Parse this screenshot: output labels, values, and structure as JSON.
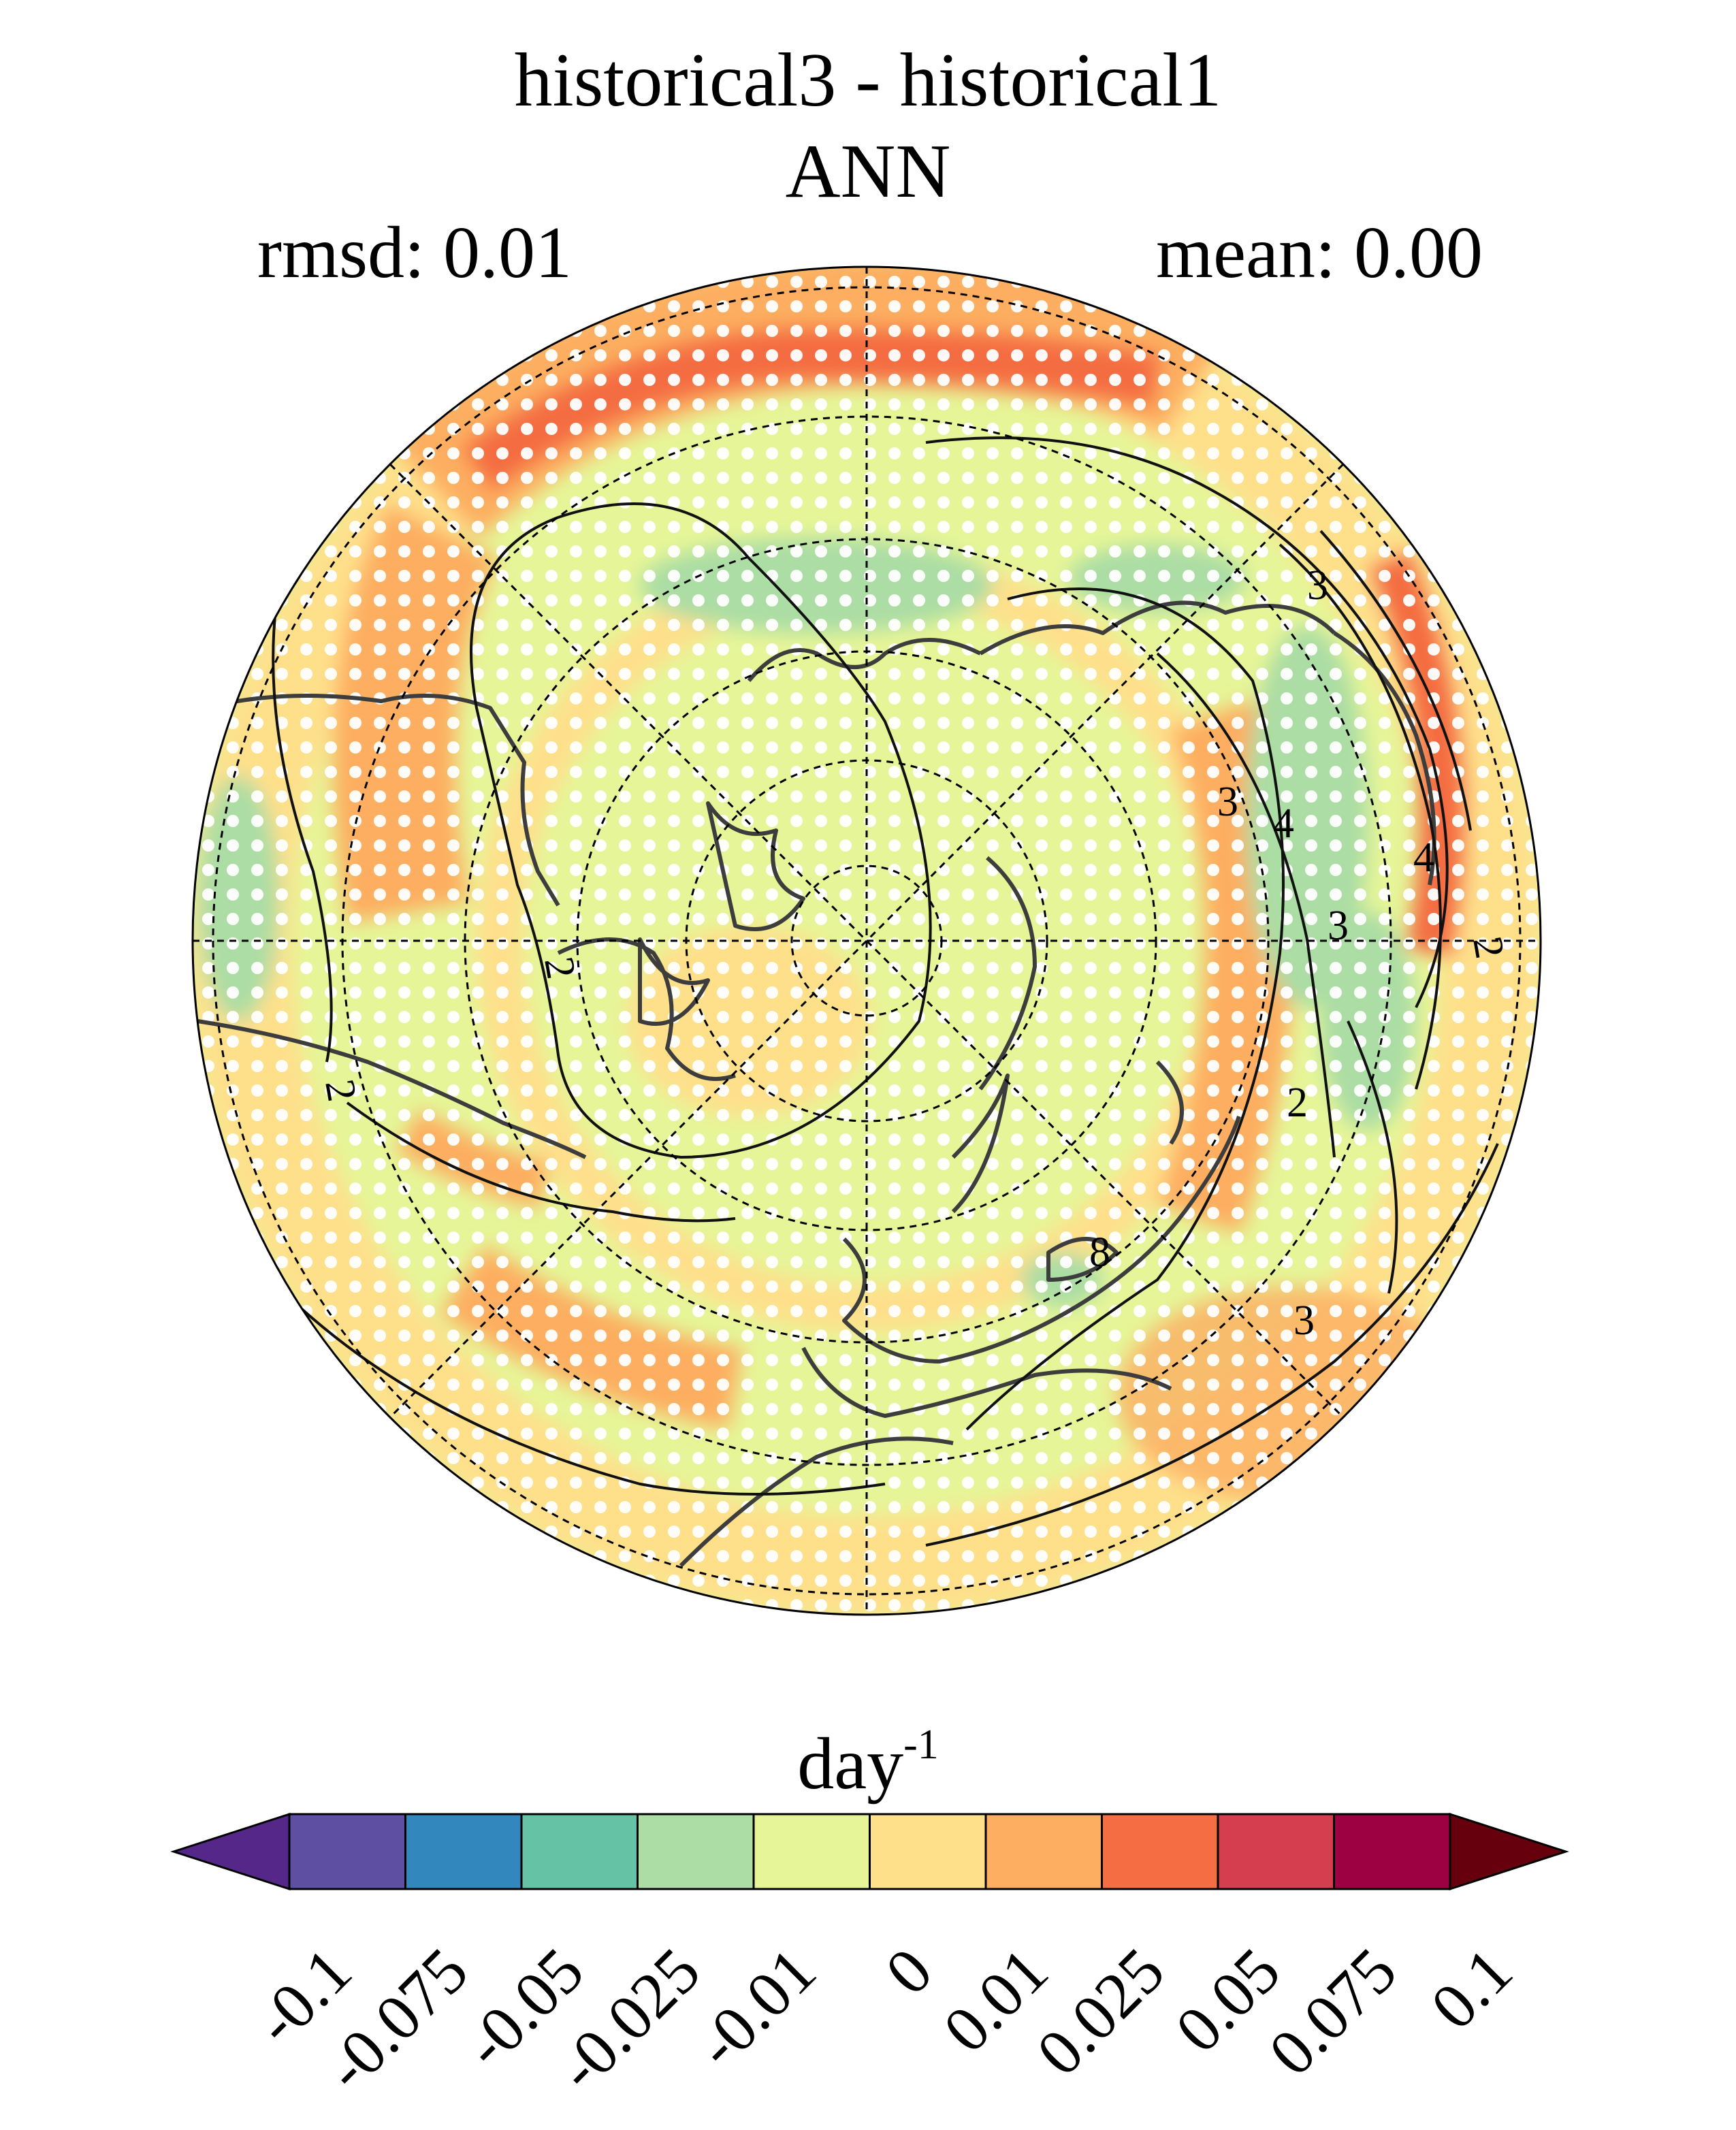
{
  "title": {
    "line1": "historical3 - historical1",
    "line2": "ANN",
    "rmsd": "rmsd: 0.01",
    "mean": "mean: 0.00"
  },
  "map": {
    "projection": "north-polar-stereographic",
    "contour_labels": [
      "2",
      "2",
      "3",
      "3",
      "4",
      "4",
      "3",
      "8",
      "3",
      "2",
      "2"
    ],
    "stippling": "white dots",
    "gridlines": "dashed"
  },
  "colorbar": {
    "units_base": "day",
    "units_exp": "-1",
    "ticks": [
      "-0.1",
      "-0.075",
      "-0.05",
      "-0.025",
      "-0.01",
      "0",
      "0.01",
      "0.025",
      "0.05",
      "0.075",
      "0.1"
    ],
    "colors": [
      "#5e4fa2",
      "#3288bd",
      "#66c2a5",
      "#abdda4",
      "#e6f598",
      "#fee08b",
      "#fdae61",
      "#f46d43",
      "#d53e4f",
      "#9e0142"
    ],
    "under_color": "#542788",
    "over_color": "#67000d"
  }
}
